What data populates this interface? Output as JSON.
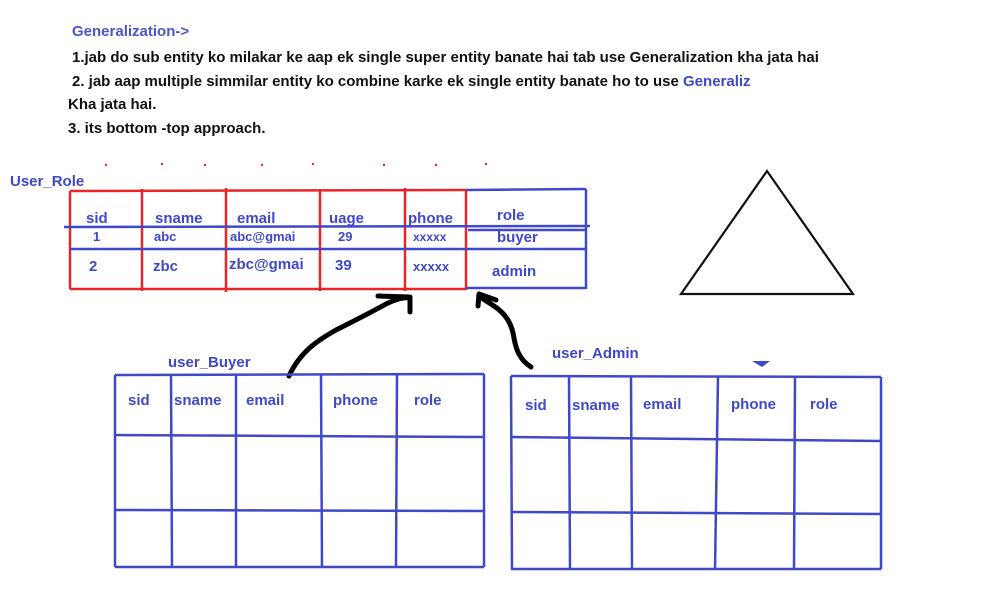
{
  "heading": "Generalization->",
  "notes": {
    "line1": "1.jab do sub entity ko milakar ke aap ek single super entity banate hai tab use Generalization kha jata hai",
    "line2_prefix": "2. jab aap multiple simmilar entity ko combine karke ek single entity banate ho to use ",
    "line2_term": "Generaliz",
    "line3": "Kha jata hai.",
    "line4": "3. its bottom -top approach."
  },
  "user_role": {
    "title": "User_Role",
    "columns": [
      "sid",
      "sname",
      "email",
      "uage",
      "phone",
      "role"
    ],
    "rows": [
      [
        "1",
        "abc",
        "abc@gmai",
        "29",
        "xxxxx",
        "buyer"
      ],
      [
        "2",
        "zbc",
        "zbc@gmai",
        "39",
        "xxxxx",
        "admin"
      ]
    ]
  },
  "user_buyer": {
    "title": "user_Buyer",
    "columns": [
      "sid",
      "sname",
      "email",
      "phone",
      "role"
    ]
  },
  "user_admin": {
    "title": "user_Admin",
    "columns": [
      "sid",
      "sname",
      "email",
      "phone",
      "role"
    ]
  },
  "colors": {
    "heading": "#4a56c8",
    "text": "#111111",
    "blue_table": "#3f48c8",
    "red_table": "#e8262a",
    "arrow": "#000000"
  }
}
